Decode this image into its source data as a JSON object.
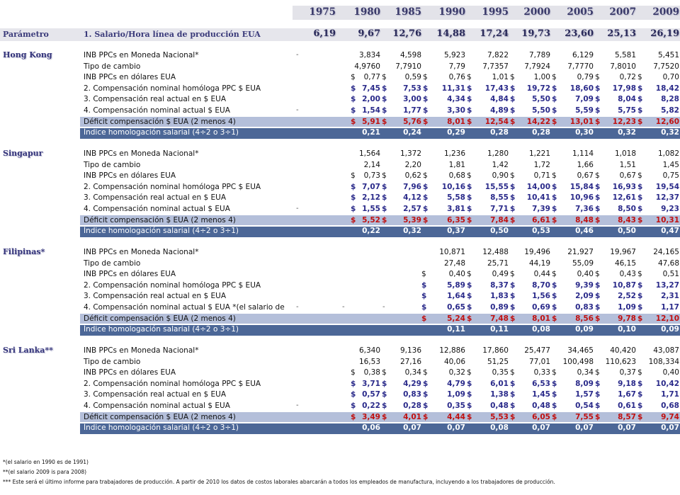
{
  "years": [
    "1975",
    "1980",
    "1985",
    "1990",
    "1995",
    "2000",
    "2005",
    "2007",
    "2009"
  ],
  "parameter": {
    "label": "Parámetro",
    "description": "1. Salario/Hora línea de producción EUA",
    "values": [
      "6,19",
      "9,67",
      "12,76",
      "14,88",
      "17,24",
      "19,73",
      "23,60",
      "25,13",
      "26,19"
    ]
  },
  "countries": [
    {
      "name": "Hong Kong",
      "rows": [
        {
          "label": "INB PPCs en Moneda Nacional*",
          "values": [
            "",
            "3,834",
            "4,598",
            "5,923",
            "7,822",
            "7,789",
            "6,129",
            "5,581",
            "5,451"
          ],
          "dash": "-"
        },
        {
          "label": "Tipo de cambio",
          "values": [
            "",
            "4,9760",
            "7,7910",
            "7,79",
            "7,7357",
            "7,7924",
            "7,7770",
            "7,8010",
            "7,7520"
          ]
        },
        {
          "label": "INB PPCs en dólares EUA",
          "values": [
            "",
            "0,77",
            "0,59",
            "0,76",
            "1,01",
            "1,00",
            "0,79",
            "0,72",
            "0,70"
          ],
          "dollar_start": 1
        },
        {
          "label": "2. Compensación nominal homóloga PPC $ EUA",
          "values": [
            "",
            "7,45",
            "7,53",
            "11,31",
            "17,43",
            "19,72",
            "18,60",
            "17,98",
            "18,42"
          ],
          "dollar_start": 1,
          "style": "blue"
        },
        {
          "label": "3. Compensación real actual  en $ EUA",
          "values": [
            "",
            "2,00",
            "3,00",
            "4,34",
            "4,84",
            "5,50",
            "7,09",
            "8,04",
            "8,28"
          ],
          "dollar_start": 1,
          "style": "blue"
        },
        {
          "label": "4. Compensación nominal actual $ EUA",
          "values": [
            "",
            "1,54",
            "1,77",
            "3,30",
            "4,89",
            "5,50",
            "5,59",
            "5,75",
            "5,82"
          ],
          "dollar_start": 1,
          "style": "blue",
          "dash": "-"
        },
        {
          "label": "Déficit compensación $ EUA (2 menos 4)",
          "values": [
            "",
            "5,91",
            "5,76",
            "8,01",
            "12,54",
            "14,22",
            "13,01",
            "12,23",
            "12,60"
          ],
          "dollar_start": 1,
          "style": "red",
          "row_type": "deficit"
        },
        {
          "label": "Índice homologación salarial (4÷2 o 3÷1)",
          "values": [
            "",
            "0,21",
            "0,24",
            "0,29",
            "0,28",
            "0,28",
            "0,30",
            "0,32",
            "0,32"
          ],
          "row_type": "index"
        }
      ]
    },
    {
      "name": "Singapur",
      "rows": [
        {
          "label": "INB PPCs en Moneda Nacional*",
          "values": [
            "",
            "1,564",
            "1,372",
            "1,236",
            "1,280",
            "1,221",
            "1,114",
            "1,018",
            "1,082"
          ]
        },
        {
          "label": "Tipo de cambio",
          "values": [
            "",
            "2,14",
            "2,20",
            "1,81",
            "1,42",
            "1,72",
            "1,66",
            "1,51",
            "1,45"
          ]
        },
        {
          "label": "INB PPCs en dólares EUA",
          "values": [
            "",
            "0,73",
            "0,62",
            "0,68",
            "0,90",
            "0,71",
            "0,67",
            "0,67",
            "0,75"
          ],
          "dollar_start": 1
        },
        {
          "label": "2. Compensación nominal homóloga PPC $ EUA",
          "values": [
            "",
            "7,07",
            "7,96",
            "10,16",
            "15,55",
            "14,00",
            "15,84",
            "16,93",
            "19,54"
          ],
          "dollar_start": 1,
          "style": "blue"
        },
        {
          "label": "3. Compensación real actual  en $ EUA",
          "values": [
            "",
            "2,12",
            "4,12",
            "5,58",
            "8,55",
            "10,41",
            "10,96",
            "12,61",
            "12,37"
          ],
          "dollar_start": 1,
          "style": "blue"
        },
        {
          "label": "4. Compensación nominal actual $ EUA",
          "values": [
            "",
            "1,55",
            "2,57",
            "3,81",
            "7,71",
            "7,39",
            "7,36",
            "8,50",
            "9,23"
          ],
          "dollar_start": 1,
          "style": "blue",
          "dash": "-"
        },
        {
          "label": "Déficit compensación $ EUA (2 menos 4)",
          "values": [
            "",
            "5,52",
            "5,39",
            "6,35",
            "7,84",
            "6,61",
            "8,48",
            "8,43",
            "10,31"
          ],
          "dollar_start": 1,
          "style": "red",
          "row_type": "deficit"
        },
        {
          "label": "Índice homologación salarial (4÷2 o 3÷1)",
          "values": [
            "",
            "0,22",
            "0,32",
            "0,37",
            "0,50",
            "0,53",
            "0,46",
            "0,50",
            "0,47"
          ],
          "row_type": "index"
        }
      ]
    },
    {
      "name": "Filipinas*",
      "rows": [
        {
          "label": "INB PPCs en Moneda Nacional*",
          "values": [
            "",
            "",
            "",
            "10,871",
            "12,488",
            "19,496",
            "21,927",
            "19,967",
            "24,165"
          ]
        },
        {
          "label": "Tipo de cambio",
          "values": [
            "",
            "",
            "",
            "27,48",
            "25,71",
            "44,19",
            "55,09",
            "46,15",
            "47,68"
          ]
        },
        {
          "label": "INB PPCs en dólares EUA",
          "values": [
            "",
            "",
            "",
            "0,40",
            "0,49",
            "0,44",
            "0,40",
            "0,43",
            "0,51"
          ],
          "dollar_start": 3
        },
        {
          "label": "2. Compensación nominal homóloga PPC $ EUA",
          "values": [
            "",
            "",
            "",
            "5,89",
            "8,37",
            "8,70",
            "9,39",
            "10,87",
            "13,27"
          ],
          "dollar_start": 3,
          "style": "blue"
        },
        {
          "label": "3. Compensación real actual  en $ EUA",
          "values": [
            "",
            "",
            "",
            "1,64",
            "1,83",
            "1,56",
            "2,09",
            "2,52",
            "2,31"
          ],
          "dollar_start": 3,
          "style": "blue"
        },
        {
          "label": "4. Compensación nominal actual $ EUA *(el salario de",
          "values": [
            "",
            "",
            "",
            "0,65",
            "0,89",
            "0,69",
            "0,83",
            "1,09",
            "1,17"
          ],
          "dollar_start": 3,
          "style": "blue",
          "dash": "-",
          "extra_dashes": true
        },
        {
          "label": "Déficit compensación $ EUA (2 menos 4)",
          "values": [
            "",
            "",
            "",
            "5,24",
            "7,48",
            "8,01",
            "8,56",
            "9,78",
            "12,10"
          ],
          "dollar_start": 3,
          "style": "red",
          "row_type": "deficit"
        },
        {
          "label": "Índice homologación salarial (4÷2 o 3÷1)",
          "values": [
            "",
            "",
            "",
            "0,11",
            "0,11",
            "0,08",
            "0,09",
            "0,10",
            "0,09"
          ],
          "row_type": "index"
        }
      ]
    },
    {
      "name": "Sri Lanka**",
      "rows": [
        {
          "label": "INB PPCs en Moneda Nacional*",
          "values": [
            "",
            "6,340",
            "9,136",
            "12,886",
            "17,860",
            "25,477",
            "34,465",
            "40,420",
            "43,087"
          ]
        },
        {
          "label": "Tipo de cambio",
          "values": [
            "",
            "16,53",
            "27,16",
            "40,06",
            "51,25",
            "77,01",
            "100,498",
            "110,623",
            "108,334"
          ]
        },
        {
          "label": "INB PPCs en dólares EUA",
          "values": [
            "",
            "0,38",
            "0,34",
            "0,32",
            "0,35",
            "0,33",
            "0,34",
            "0,37",
            "0,40"
          ],
          "dollar_start": 1
        },
        {
          "label": "2. Compensación nominal homóloga PPC $ EUA",
          "values": [
            "",
            "3,71",
            "4,29",
            "4,79",
            "6,01",
            "6,53",
            "8,09",
            "9,18",
            "10,42"
          ],
          "dollar_start": 1,
          "style": "blue"
        },
        {
          "label": "3. Compensación real actual  en $ EUA",
          "values": [
            "",
            "0,57",
            "0,83",
            "1,09",
            "1,38",
            "1,45",
            "1,57",
            "1,67",
            "1,71"
          ],
          "dollar_start": 1,
          "style": "blue"
        },
        {
          "label": "4. Compensación nominal actual $ EUA",
          "values": [
            "",
            "0,22",
            "0,28",
            "0,35",
            "0,48",
            "0,48",
            "0,54",
            "0,61",
            "0,68"
          ],
          "dollar_start": 1,
          "style": "blue",
          "dash": "-"
        },
        {
          "label": "Déficit compensación $ EUA (2 menos 4)",
          "values": [
            "",
            "3,49",
            "4,01",
            "4,44",
            "5,53",
            "6,05",
            "7,55",
            "8,57",
            "9,74"
          ],
          "dollar_start": 1,
          "style": "red",
          "row_type": "deficit"
        },
        {
          "label": "Índice homologación salarial (4÷2 o 3÷1)",
          "values": [
            "",
            "0,06",
            "0,07",
            "0,07",
            "0,08",
            "0,07",
            "0,07",
            "0,07",
            "0,07"
          ],
          "row_type": "index"
        }
      ]
    }
  ],
  "footnotes": [
    "*(el salario en 1990 es de 1991)",
    "**(el salario 2009 is para 2008)",
    "*** Este será el último informe para trabajadores de producción. A partir de 2010 los datos de  costos laborales abarcarán a todos los empleados de manufactura, incluyendo a los trabajadores de producción."
  ],
  "currency_symbol": "$",
  "colors": {
    "blue_value": "#2a2a8a",
    "red_value": "#c01010",
    "index_bar": "#4c6797",
    "deficit_bar": "#b4bfda"
  }
}
